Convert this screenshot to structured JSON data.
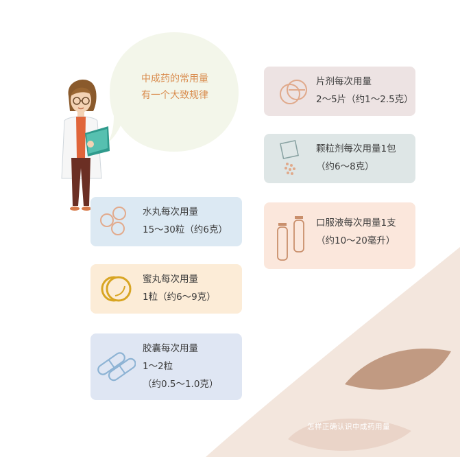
{
  "bubble": {
    "line1": "中成药的常用量",
    "line2": "有一个大致规律"
  },
  "cards": {
    "tablet": {
      "title": "片剂每次用量",
      "dose": "2～5片（约1～2.5克）",
      "icon": "tablet-icon"
    },
    "granule": {
      "title": "颗粒剂每次用量1包",
      "dose": "（约6～8克）",
      "icon": "granule-packet-icon"
    },
    "oral_liquid": {
      "title": "口服液每次用量1支",
      "dose": "（约10～20毫升）",
      "icon": "vial-icon"
    },
    "water_pill": {
      "title": "水丸每次用量",
      "dose": "15～30粒（约6克）",
      "icon": "pills-icon"
    },
    "honey_pill": {
      "title": "蜜丸每次用量",
      "dose": "1粒（约6～9克）",
      "icon": "honey-pill-icon"
    },
    "capsule": {
      "title": "胶囊每次用量",
      "dose": "1～2粒",
      "dose2": "（约0.5～1.0克）",
      "icon": "capsule-icon"
    }
  },
  "footer": {
    "caption": "怎样正确认识中成药用量"
  },
  "colors": {
    "bubble_text": "#d98c4e",
    "tablet_bg": "#ede3e3",
    "granule_bg": "#dee6e6",
    "oral_bg": "#fbe7dc",
    "water_bg": "#dce9f3",
    "honey_bg": "#fcecd7",
    "capsule_bg": "#dfe6f3",
    "leaf": "#c19a82",
    "corner": "#f3e6dd"
  }
}
